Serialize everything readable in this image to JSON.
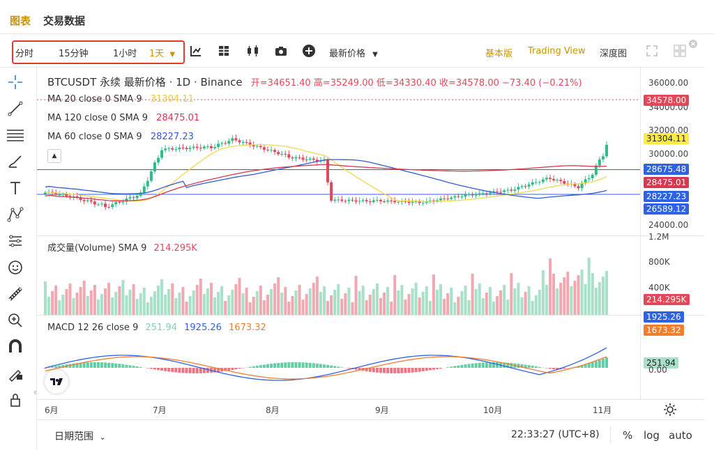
{
  "top_tabs": [
    "图表",
    "交易数据"
  ],
  "toolbar": {
    "intervals": [
      "分时",
      "15分钟",
      "1小时",
      "1天"
    ],
    "price_type": "最新价格",
    "views": [
      "基本版",
      "Trading View",
      "深度图"
    ]
  },
  "legend": {
    "symbol": "BTCUSDT 永续 最新价格 · 1D · Binance",
    "ohlc": "开=34651.40 高=35249.00 低=34330.40 收=34578.00 −73.40 (−0.21%)",
    "ma20": {
      "label": "MA 20 close 0 SMA 9",
      "value": "31304.11",
      "color": "#f2d84b"
    },
    "ma120": {
      "label": "MA 120 close 0 SMA 9",
      "value": "28475.01",
      "color": "#d5384f"
    },
    "ma60": {
      "label": "MA 60 close 0 SMA 9",
      "value": "28227.23",
      "color": "#2f5bd6"
    }
  },
  "price_axis": [
    "36000.00",
    "34000.00",
    "32000.00",
    "30000.00",
    "24000.00"
  ],
  "price_tags": [
    {
      "text": "34578.00",
      "color": "#e3485a",
      "text_color": "#ffffff"
    },
    {
      "text": "31304.11",
      "color": "#ffec3d",
      "text_color": "#1e2329"
    },
    {
      "text": "28675.48",
      "color": "#2d62e6",
      "text_color": "#ffffff"
    },
    {
      "text": "28475.01",
      "color": "#d5384f",
      "text_color": "#ffffff"
    },
    {
      "text": "28227.23",
      "color": "#2d62e6",
      "text_color": "#ffffff"
    },
    {
      "text": "26589.12",
      "color": "#2d62e6",
      "text_color": "#ffffff"
    }
  ],
  "volume": {
    "label": "成交量(Volume) SMA 9",
    "value": "214.295K",
    "axis": [
      "1.2M",
      "800K",
      "400K"
    ],
    "tag": "214.295K"
  },
  "macd": {
    "label": "MACD 12 26 close 9",
    "v1": "251.94",
    "v2": "1925.26",
    "v3": "1673.32",
    "axis": [
      "0.00"
    ],
    "tags": [
      {
        "text": "1925.26",
        "color": "#2d62e6",
        "text_color": "#ffffff"
      },
      {
        "text": "1673.32",
        "color": "#f07e2d",
        "text_color": "#ffffff"
      },
      {
        "text": "251.94",
        "color": "#a8e0c8",
        "text_color": "#1e2329"
      }
    ]
  },
  "time_axis": [
    "6月",
    "7月",
    "8月",
    "9月",
    "10月",
    "11月"
  ],
  "footer": {
    "date_range": "日期范围",
    "clock": "22:33:27 (UTC+8)",
    "pct": "%",
    "log": "log",
    "auto": "auto"
  },
  "logo_text": "TV"
}
